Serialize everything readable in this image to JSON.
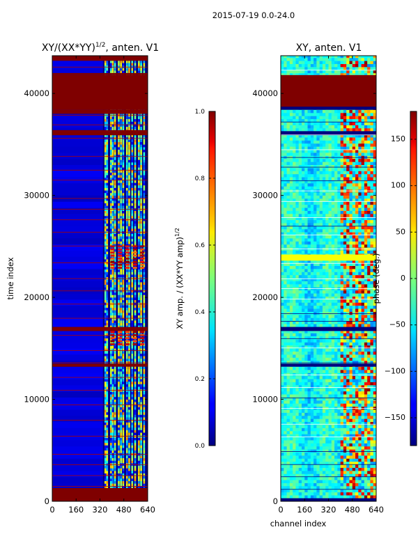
{
  "suptitle": "2015-07-19 0.0-24.0",
  "chart_data": [
    {
      "type": "heatmap",
      "title_main": "XY/(XX*YY)",
      "title_sup": "1/2",
      "title_rest": ", anten. V1",
      "xlabel": "",
      "ylabel": "time index",
      "x_ticks": [
        "0",
        "160",
        "320",
        "480",
        "640"
      ],
      "x_tick_values": [
        0,
        160,
        320,
        480,
        640
      ],
      "y_ticks": [
        "0",
        "10000",
        "20000",
        "30000",
        "40000"
      ],
      "y_tick_values": [
        0,
        10000,
        20000,
        30000,
        40000
      ],
      "xlim": [
        0,
        640
      ],
      "ylim": [
        0,
        43700
      ],
      "colorbar": {
        "label_main": "XY amp. / (XX*YY amp)",
        "label_sup": "1/2",
        "ticks": [
          "0.0",
          "0.2",
          "0.4",
          "0.6",
          "0.8",
          "1.0"
        ],
        "tick_values": [
          0.0,
          0.2,
          0.4,
          0.6,
          0.8,
          1.0
        ],
        "range": [
          0.0,
          1.0
        ],
        "colormap": "jet"
      }
    },
    {
      "type": "heatmap",
      "title": "XY, anten. V1",
      "xlabel": "channel index",
      "ylabel": "",
      "x_ticks": [
        "0",
        "160",
        "320",
        "480",
        "640"
      ],
      "x_tick_values": [
        0,
        160,
        320,
        480,
        640
      ],
      "y_ticks": [
        "0",
        "10000",
        "20000",
        "30000",
        "40000"
      ],
      "y_tick_values": [
        0,
        10000,
        20000,
        30000,
        40000
      ],
      "xlim": [
        0,
        640
      ],
      "ylim": [
        0,
        43700
      ],
      "colorbar": {
        "label": "phase (deg.)",
        "ticks": [
          "−150",
          "−100",
          "−50",
          "0",
          "50",
          "100",
          "150"
        ],
        "tick_values": [
          -150,
          -100,
          -50,
          0,
          50,
          100,
          150
        ],
        "range": [
          -180,
          180
        ],
        "colormap": "jet"
      }
    }
  ],
  "colors": {
    "jet_dark_blue": "#00007f",
    "jet_dark_red": "#7f0000",
    "axis": "#000000"
  }
}
